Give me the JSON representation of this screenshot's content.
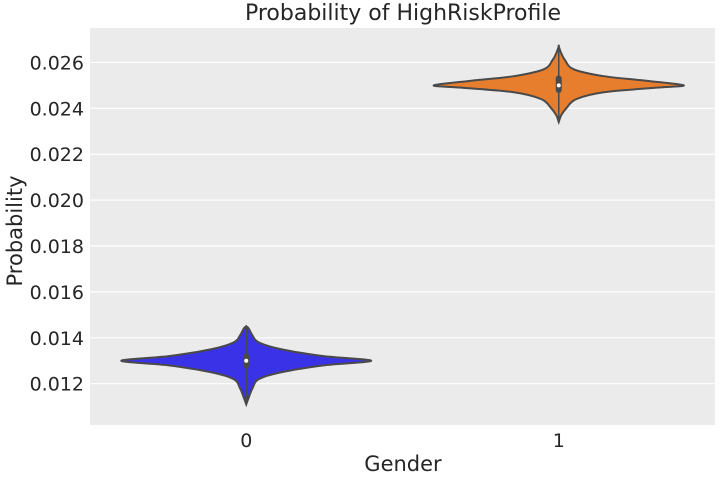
{
  "chart_data": {
    "type": "violin",
    "title": "Probability of HighRiskProfile",
    "xlabel": "Gender",
    "ylabel": "Probability",
    "categories": [
      "0",
      "1"
    ],
    "ylim": [
      0.0102,
      0.0275
    ],
    "yticks": [
      0.012,
      0.014,
      0.016,
      0.018,
      0.02,
      0.022,
      0.024,
      0.026
    ],
    "ytick_labels": [
      "0.012",
      "0.014",
      "0.016",
      "0.018",
      "0.020",
      "0.022",
      "0.024",
      "0.026"
    ],
    "grid": true,
    "legend": "none",
    "background": "#ebebeb",
    "series": [
      {
        "category": "0",
        "color": "#3a32e6",
        "min": 0.0111,
        "q1": 0.0128,
        "median": 0.013,
        "q3": 0.0132,
        "max": 0.0145,
        "density_y": [
          0.0111,
          0.0114,
          0.0118,
          0.0122,
          0.0125,
          0.0128,
          0.013,
          0.0132,
          0.0135,
          0.0138,
          0.0141,
          0.0144,
          0.0145
        ],
        "density_w": [
          0.0,
          0.02,
          0.05,
          0.1,
          0.28,
          0.62,
          1.0,
          0.62,
          0.28,
          0.1,
          0.05,
          0.02,
          0.0
        ]
      },
      {
        "category": "1",
        "color": "#e67e2e",
        "min": 0.0234,
        "q1": 0.0248,
        "median": 0.025,
        "q3": 0.0253,
        "max": 0.0267,
        "density_y": [
          0.0234,
          0.0237,
          0.024,
          0.0244,
          0.0247,
          0.0249,
          0.025,
          0.0252,
          0.0254,
          0.0257,
          0.0261,
          0.0264,
          0.0267
        ],
        "density_w": [
          0.0,
          0.02,
          0.06,
          0.14,
          0.36,
          0.78,
          1.0,
          0.7,
          0.36,
          0.12,
          0.05,
          0.02,
          0.0
        ]
      }
    ]
  }
}
